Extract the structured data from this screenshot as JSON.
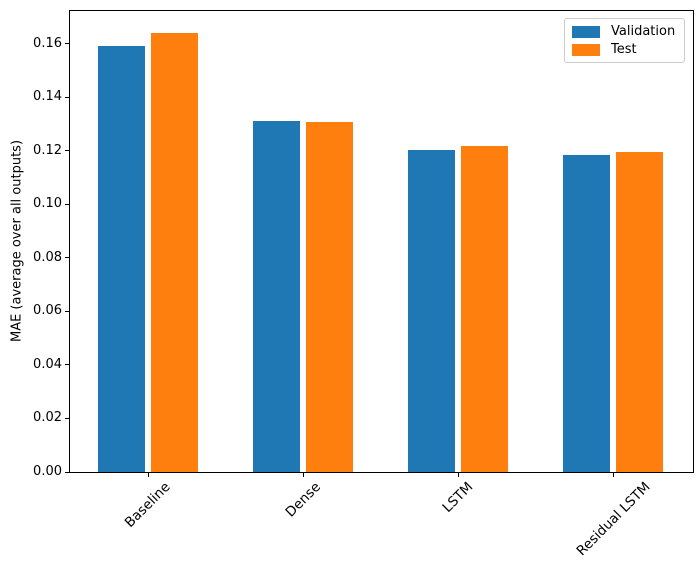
{
  "chart_data": {
    "type": "bar",
    "title": "",
    "xlabel": "",
    "ylabel": "MAE (average over all outputs)",
    "categories": [
      "Baseline",
      "Dense",
      "LSTM",
      "Residual LSTM"
    ],
    "series": [
      {
        "name": "Validation",
        "color": "#1f77b4",
        "values": [
          0.1591,
          0.131,
          0.1204,
          0.1186
        ]
      },
      {
        "name": "Test",
        "color": "#ff7f0e",
        "values": [
          0.1641,
          0.1308,
          0.1219,
          0.1197
        ]
      }
    ],
    "ylim": [
      0,
      0.1722
    ],
    "yticks": [
      0.0,
      0.02,
      0.04,
      0.06,
      0.08,
      0.1,
      0.12,
      0.14,
      0.16
    ],
    "ytick_labels": [
      "0.00",
      "0.02",
      "0.04",
      "0.06",
      "0.08",
      "0.10",
      "0.12",
      "0.14",
      "0.16"
    ],
    "xtick_rotation": 45,
    "grid": false,
    "legend": {
      "position": "upper right",
      "entries": [
        "Validation",
        "Test"
      ]
    }
  }
}
